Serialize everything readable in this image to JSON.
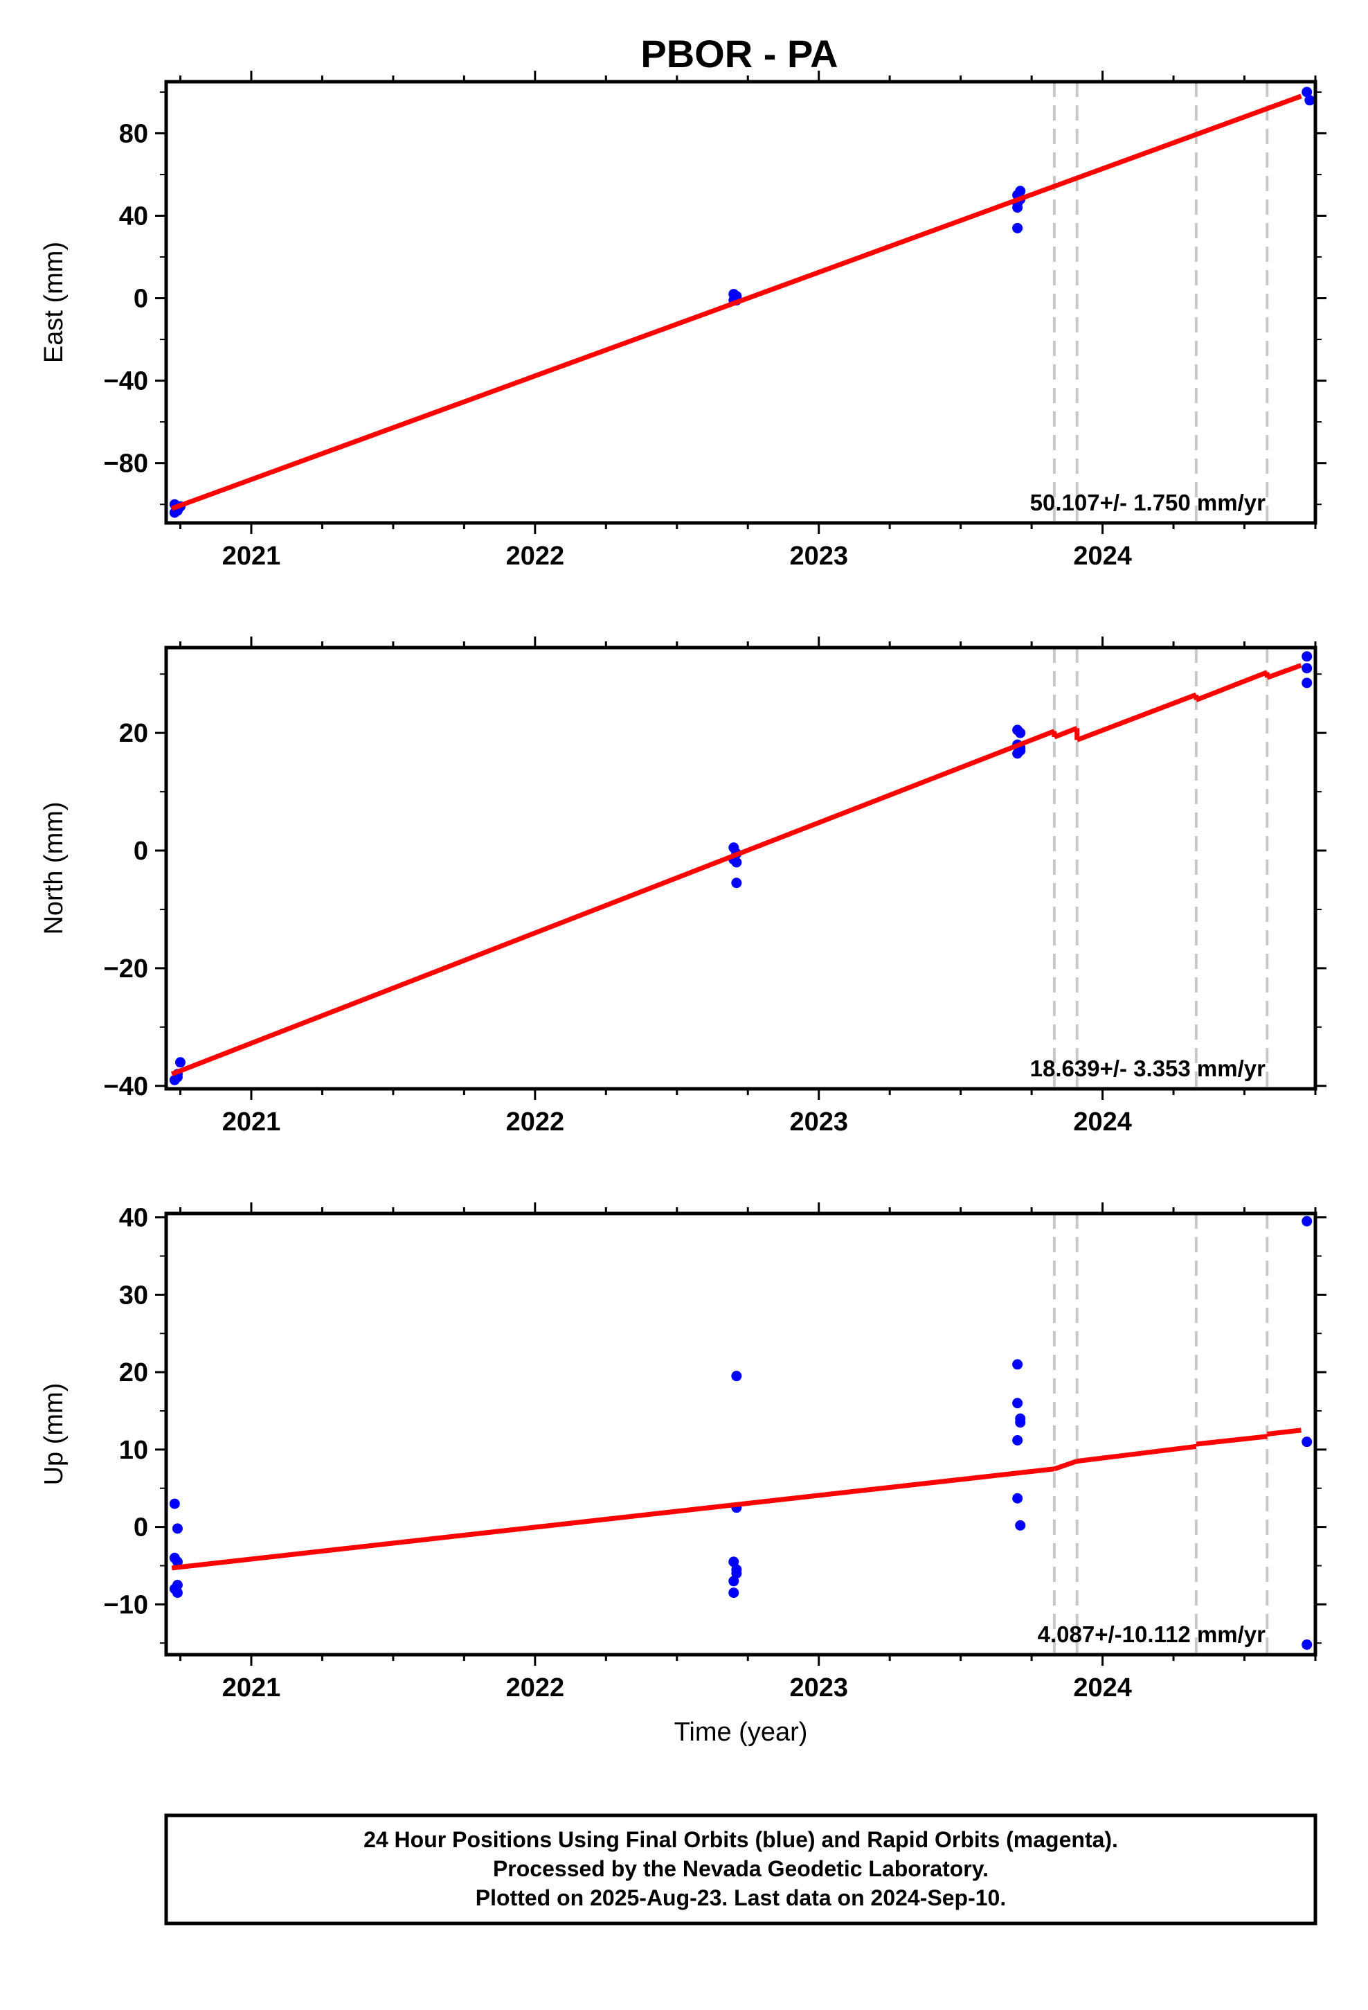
{
  "title": "PBOR - PA",
  "colors": {
    "data_points": "#0000ff",
    "fit_line": "#ff0000",
    "break_lines": "#c8c8c8",
    "frame": "#000000"
  },
  "chart_data": [
    {
      "type": "scatter",
      "ylabel": "East (mm)",
      "xlabel": "",
      "xlim": [
        2020.7,
        2024.75
      ],
      "ylim": [
        -109,
        105
      ],
      "xticks": [
        2021,
        2022,
        2023,
        2024
      ],
      "xtick_labels": [
        "2021",
        "2022",
        "2023",
        "2024"
      ],
      "yticks": [
        -80,
        -40,
        0,
        40,
        80
      ],
      "ytick_labels": [
        "−80",
        "−40",
        "0",
        "40",
        "80"
      ],
      "grid": false,
      "breaks": [
        2023.83,
        2023.91,
        2024.33,
        2024.58
      ],
      "points": [
        [
          2020.73,
          -104
        ],
        [
          2020.74,
          -103
        ],
        [
          2020.75,
          -101
        ],
        [
          2020.73,
          -100
        ],
        [
          2020.74,
          -102
        ],
        [
          2022.7,
          -1
        ],
        [
          2022.71,
          1
        ],
        [
          2022.7,
          2
        ],
        [
          2022.71,
          0
        ],
        [
          2022.71,
          -1
        ],
        [
          2023.7,
          34
        ],
        [
          2023.7,
          46
        ],
        [
          2023.71,
          48
        ],
        [
          2023.7,
          50
        ],
        [
          2023.71,
          52
        ],
        [
          2023.7,
          44
        ],
        [
          2024.72,
          100
        ],
        [
          2024.73,
          96
        ]
      ],
      "fit": [
        [
          2020.72,
          -102
        ],
        [
          2024.7,
          98
        ]
      ],
      "rate_label": "50.107+/- 1.750 mm/yr"
    },
    {
      "type": "scatter",
      "ylabel": "North (mm)",
      "xlabel": "",
      "xlim": [
        2020.7,
        2024.75
      ],
      "ylim": [
        -40.5,
        34.5
      ],
      "xticks": [
        2021,
        2022,
        2023,
        2024
      ],
      "xtick_labels": [
        "2021",
        "2022",
        "2023",
        "2024"
      ],
      "yticks": [
        -40,
        -20,
        0,
        20
      ],
      "ytick_labels": [
        "−40",
        "−20",
        "0",
        "20"
      ],
      "grid": false,
      "breaks": [
        2023.83,
        2023.91,
        2024.33,
        2024.58
      ],
      "points": [
        [
          2020.73,
          -39
        ],
        [
          2020.74,
          -38.5
        ],
        [
          2020.74,
          -38
        ],
        [
          2020.75,
          -36
        ],
        [
          2022.7,
          0.5
        ],
        [
          2022.71,
          -0.5
        ],
        [
          2022.7,
          -1.5
        ],
        [
          2022.71,
          -2
        ],
        [
          2022.71,
          -5.5
        ],
        [
          2023.7,
          20.5
        ],
        [
          2023.71,
          20
        ],
        [
          2023.7,
          18
        ],
        [
          2023.71,
          17
        ],
        [
          2023.7,
          16.5
        ],
        [
          2023.71,
          17.5
        ],
        [
          2024.72,
          33
        ],
        [
          2024.72,
          31
        ],
        [
          2024.72,
          28.5
        ]
      ],
      "fit": [
        [
          [
            2020.72,
            -38
          ],
          [
            2023.83,
            20.3
          ]
        ],
        [
          [
            2023.83,
            19.3
          ],
          [
            2023.91,
            20.8
          ]
        ],
        [
          [
            2023.91,
            18.8
          ],
          [
            2024.33,
            26.5
          ]
        ],
        [
          [
            2024.33,
            25.6
          ],
          [
            2024.58,
            30.3
          ]
        ],
        [
          [
            2024.58,
            29.4
          ],
          [
            2024.7,
            31.5
          ]
        ]
      ],
      "rate_label": "18.639+/- 3.353 mm/yr"
    },
    {
      "type": "scatter",
      "ylabel": "Up (mm)",
      "xlabel": "Time (year)",
      "xlim": [
        2020.7,
        2024.75
      ],
      "ylim": [
        -16.5,
        40.5
      ],
      "xticks": [
        2021,
        2022,
        2023,
        2024
      ],
      "xtick_labels": [
        "2021",
        "2022",
        "2023",
        "2024"
      ],
      "yticks": [
        -10,
        0,
        10,
        20,
        30,
        40
      ],
      "ytick_labels": [
        "−10",
        "0",
        "10",
        "20",
        "30",
        "40"
      ],
      "grid": false,
      "breaks": [
        2023.83,
        2023.91,
        2024.33,
        2024.58
      ],
      "points": [
        [
          2020.73,
          3
        ],
        [
          2020.74,
          -0.2
        ],
        [
          2020.73,
          -4
        ],
        [
          2020.74,
          -4.5
        ],
        [
          2020.74,
          -7.5
        ],
        [
          2020.73,
          -8
        ],
        [
          2020.74,
          -8.5
        ],
        [
          2022.71,
          19.5
        ],
        [
          2022.71,
          2.5
        ],
        [
          2022.7,
          -4.5
        ],
        [
          2022.71,
          -6
        ],
        [
          2022.71,
          -5.5
        ],
        [
          2022.7,
          -7
        ],
        [
          2022.7,
          -8.5
        ],
        [
          2023.7,
          21
        ],
        [
          2023.7,
          16
        ],
        [
          2023.71,
          14
        ],
        [
          2023.71,
          13.5
        ],
        [
          2023.7,
          11.2
        ],
        [
          2023.7,
          3.7
        ],
        [
          2023.71,
          0.2
        ],
        [
          2024.72,
          39.5
        ],
        [
          2024.72,
          11
        ],
        [
          2024.72,
          -15.2
        ]
      ],
      "fit": [
        [
          [
            2020.72,
            -5.3
          ],
          [
            2023.83,
            7.5
          ]
        ],
        [
          [
            2023.91,
            8.5
          ],
          [
            2024.33,
            10.4
          ]
        ],
        [
          [
            2024.33,
            10.7
          ],
          [
            2024.58,
            11.7
          ]
        ],
        [
          [
            2024.58,
            12.0
          ],
          [
            2024.7,
            12.5
          ]
        ]
      ],
      "rate_label": "4.087+/-10.112 mm/yr"
    }
  ],
  "footer": {
    "line1": "24 Hour Positions Using Final Orbits (blue) and Rapid Orbits (magenta).",
    "line2": "Processed by the Nevada Geodetic Laboratory.",
    "line3": "Plotted on 2025-Aug-23. Last data on 2024-Sep-10."
  }
}
